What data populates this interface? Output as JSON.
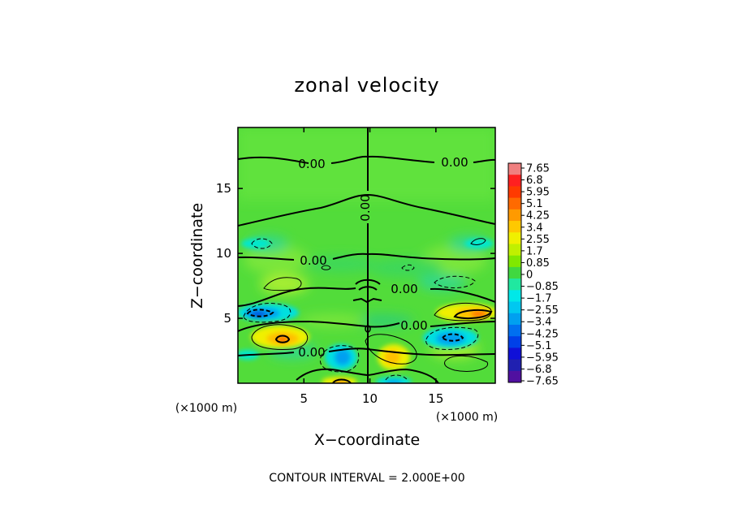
{
  "chart_data": {
    "type": "heatmap",
    "title": "zonal velocity",
    "xlabel": "X−coordinate",
    "ylabel": "Z−coordinate",
    "x_unit_label_left": "(×1000 m)",
    "x_unit_label_right": "(×1000 m)",
    "xlim": [
      0,
      19.5
    ],
    "ylim": [
      0,
      19.7
    ],
    "x_ticks": [
      5,
      10,
      15
    ],
    "y_ticks": [
      5,
      10,
      15
    ],
    "x_tick_labels": [
      "5",
      "10",
      "15"
    ],
    "y_tick_labels": [
      "5",
      "10",
      "15"
    ],
    "footer": "CONTOUR INTERVAL = 2.000E+00",
    "contour_labels": [
      "0.00",
      "0.00",
      "0.00",
      "0.00",
      "0.00",
      "0.00",
      "0.00",
      "0.00"
    ],
    "colorbar": {
      "labels": [
        "7.65",
        "6.8",
        "5.95",
        "5.1",
        "4.25",
        "3.4",
        "2.55",
        "1.7",
        "0.85",
        "0",
        "−0.85",
        "−1.7",
        "−2.55",
        "−3.4",
        "−4.25",
        "−5.1",
        "−5.95",
        "−6.8",
        "−7.65"
      ],
      "colors": [
        "#f08080",
        "#ff2020",
        "#ff3a00",
        "#ff6a00",
        "#ff9a00",
        "#ffc800",
        "#f0f000",
        "#c0f000",
        "#80e800",
        "#40d840",
        "#20e8a0",
        "#00e8e8",
        "#00c8f0",
        "#00a0f0",
        "#0070f0",
        "#0040e8",
        "#1010d8",
        "#2020b0",
        "#5010a0"
      ]
    },
    "features": [
      {
        "name": "negative-core-left",
        "x": 1.8,
        "z": 5.3,
        "value": -5.1
      },
      {
        "name": "positive-core-left",
        "x": 3.5,
        "z": 3.4,
        "value": 4.25
      },
      {
        "name": "negative-core-center",
        "x": 8.0,
        "z": 2.2,
        "value": -3.4
      },
      {
        "name": "positive-core-center",
        "x": 12.0,
        "z": 2.2,
        "value": 3.4
      },
      {
        "name": "positive-core-right",
        "x": 18.0,
        "z": 5.3,
        "value": 5.1
      },
      {
        "name": "negative-core-right",
        "x": 16.0,
        "z": 3.4,
        "value": -4.25
      },
      {
        "name": "positive-core-bottom",
        "x": 8.3,
        "z": 0.3,
        "value": 4.25
      },
      {
        "name": "negative-core-bottom",
        "x": 11.8,
        "z": 0.3,
        "value": -3.4
      }
    ]
  }
}
